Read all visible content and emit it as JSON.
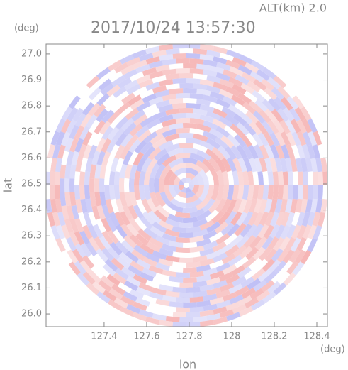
{
  "chart_data": {
    "type": "radar-ppi",
    "title": "2017/10/24 13:57:30",
    "altitude_label": "ALT(km) 2.0",
    "xlabel": "lon",
    "ylabel": "lat",
    "xunit": "(deg)",
    "yunit": "(deg)",
    "xlim": [
      127.127,
      128.45
    ],
    "ylim": [
      25.951,
      27.038
    ],
    "xticks": [
      127.4,
      127.6,
      127.8,
      128.0,
      128.2,
      128.4
    ],
    "yticks": [
      {
        "value": 26.0,
        "label": "26.0"
      },
      26.1,
      26.2,
      26.3,
      26.4,
      26.5,
      26.6,
      26.7,
      26.8,
      26.9,
      {
        "value": 27.0,
        "label": "27.0"
      }
    ]
  }
}
